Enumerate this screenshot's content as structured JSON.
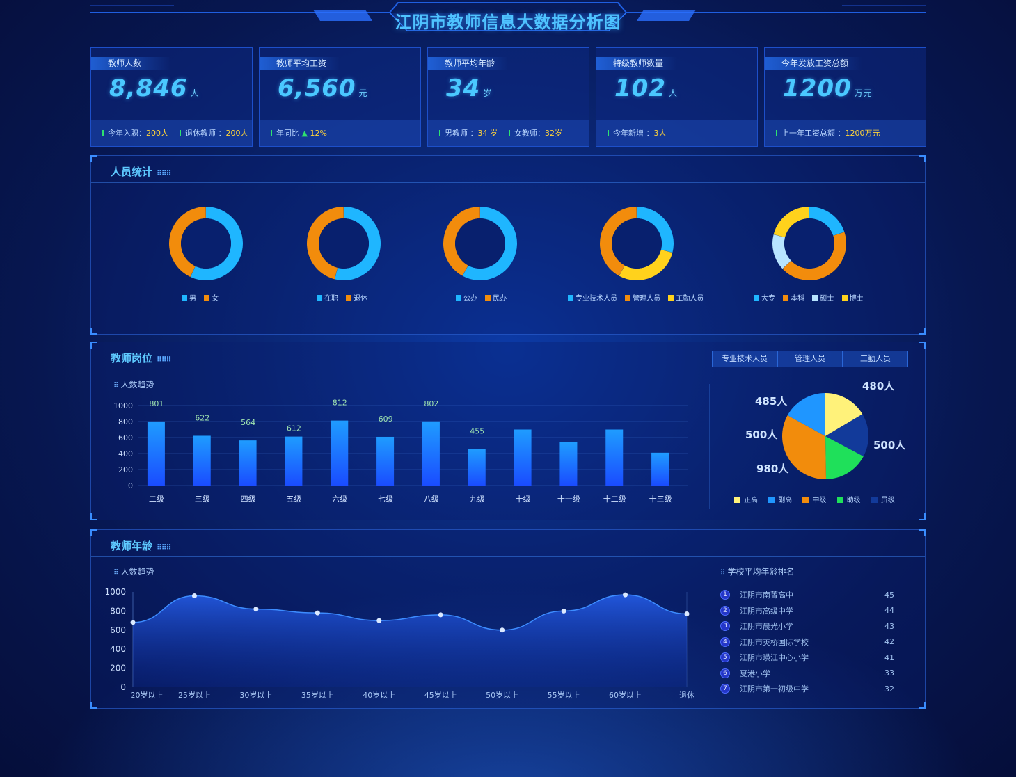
{
  "header": {
    "title": "江阴市教师信息大数据分析图"
  },
  "cards": [
    {
      "label": "教师人数",
      "value": "8,846",
      "unit": "人",
      "foot": [
        {
          "text": "今年入职：",
          "value": "200人"
        },
        {
          "text": "退休教师 ：",
          "value": "200人"
        }
      ]
    },
    {
      "label": "教师平均工资",
      "value": "6,560",
      "unit": "元",
      "foot": [
        {
          "text": "年同比",
          "arrow": "▲",
          "value": "12%"
        }
      ]
    },
    {
      "label": "教师平均年龄",
      "value": "34",
      "unit": "岁",
      "foot": [
        {
          "text": "男教师 ：",
          "value": "34 岁"
        },
        {
          "text": "女教师：",
          "value": "32岁"
        }
      ]
    },
    {
      "label": "特级教师数量",
      "value": "102",
      "unit": "人",
      "foot": [
        {
          "text": "今年新增 ：",
          "value": "3人"
        }
      ]
    },
    {
      "label": "今年发放工资总额",
      "value": "1200",
      "unit": "万元",
      "foot": [
        {
          "text": "上一年工资总额 ：",
          "value": "1200万元"
        }
      ]
    }
  ],
  "staff_panel": {
    "title": "人员统计",
    "donuts": [
      {
        "legend": [
          "男",
          "女"
        ],
        "values": [
          0.57,
          0.43
        ],
        "colors": [
          "#1fb6ff",
          "#f28c0c"
        ]
      },
      {
        "legend": [
          "在职",
          "退休"
        ],
        "values": [
          0.54,
          0.46
        ],
        "colors": [
          "#1fb6ff",
          "#f28c0c"
        ]
      },
      {
        "legend": [
          "公办",
          "民办"
        ],
        "values": [
          0.58,
          0.42
        ],
        "colors": [
          "#1fb6ff",
          "#f28c0c"
        ]
      },
      {
        "legend": [
          "专业技术人员",
          "管理人员",
          "工勤人员"
        ],
        "values": [
          0.29,
          0.29,
          0.42
        ],
        "colors": [
          "#1fb6ff",
          "#ffd21c",
          "#f28c0c"
        ]
      },
      {
        "legend": [
          "大专",
          "本科",
          "硕士",
          "博士"
        ],
        "values": [
          0.2,
          0.43,
          0.16,
          0.21
        ],
        "colors": [
          "#1fb6ff",
          "#f28c0c",
          "#b7e4ff",
          "#ffd21c"
        ]
      }
    ]
  },
  "post_panel": {
    "title": "教师岗位",
    "subtitle": "人数趋势",
    "tabs": [
      "专业技术人员",
      "管理人员",
      "工勤人员"
    ],
    "pie_legend": [
      {
        "label": "正高",
        "color": "#fff27a"
      },
      {
        "label": "副高",
        "color": "#1f96ff"
      },
      {
        "label": "中级",
        "color": "#f28c0c"
      },
      {
        "label": "助级",
        "color": "#1fe05a"
      },
      {
        "label": "员级",
        "color": "#123a9a"
      }
    ],
    "pie_labels": [
      {
        "text": "485人",
        "color": "#ffe86a"
      },
      {
        "text": "480人",
        "color": "#4fa8ff"
      },
      {
        "text": "500人",
        "color": "#59b8ff"
      },
      {
        "text": "500人",
        "color": "#2ee26f"
      },
      {
        "text": "980人",
        "color": "#f28c0c"
      }
    ]
  },
  "age_panel": {
    "title": "教师年龄",
    "subtitle": "人数趋势",
    "ranking_title": "学校平均年龄排名",
    "ranking": [
      {
        "rank": "1",
        "name": "江阴市南菁高中",
        "value": "45"
      },
      {
        "rank": "2",
        "name": "江阴市高级中学",
        "value": "44"
      },
      {
        "rank": "3",
        "name": "江阴市晨光小学",
        "value": "43"
      },
      {
        "rank": "4",
        "name": "江阴市英桥国际学校",
        "value": "42"
      },
      {
        "rank": "5",
        "name": "江阴市璜江中心小学",
        "value": "41"
      },
      {
        "rank": "6",
        "name": "夏港小学",
        "value": "33"
      },
      {
        "rank": "7",
        "name": "江阴市第一初级中学",
        "value": "32"
      }
    ]
  },
  "chart_data": [
    {
      "type": "bar",
      "categories": [
        "二级",
        "三级",
        "四级",
        "五级",
        "六级",
        "七级",
        "八级",
        "九级",
        "十级",
        "十一级",
        "十二级",
        "十三级"
      ],
      "values": [
        801,
        622,
        564,
        612,
        812,
        609,
        802,
        455,
        700,
        540,
        700,
        410
      ],
      "data_labels": [
        "801",
        "622",
        "564",
        "612",
        "812",
        "609",
        "802",
        "455",
        "",
        "",
        "",
        ""
      ],
      "yticks": [
        "0",
        "200",
        "400",
        "600",
        "800",
        "1000"
      ],
      "ylim": [
        0,
        1000
      ],
      "color": "#1f8cff"
    },
    {
      "type": "pie",
      "slices": [
        {
          "label": "正高",
          "value": 485
        },
        {
          "label": "员级",
          "value": 480
        },
        {
          "label": "助级",
          "value": 500
        },
        {
          "label": "中级",
          "value": 980
        },
        {
          "label": "副高",
          "value": 500
        }
      ]
    },
    {
      "type": "area",
      "categories": [
        "20岁以上",
        "25岁以上",
        "30岁以上",
        "35岁以上",
        "40岁以上",
        "45岁以上",
        "50岁以上",
        "55岁以上",
        "60岁以上",
        "退休"
      ],
      "values": [
        680,
        960,
        820,
        780,
        700,
        760,
        600,
        800,
        970,
        770
      ],
      "yticks": [
        "0",
        "200",
        "400",
        "600",
        "800",
        "1000"
      ],
      "ylim": [
        0,
        1000
      ]
    }
  ]
}
